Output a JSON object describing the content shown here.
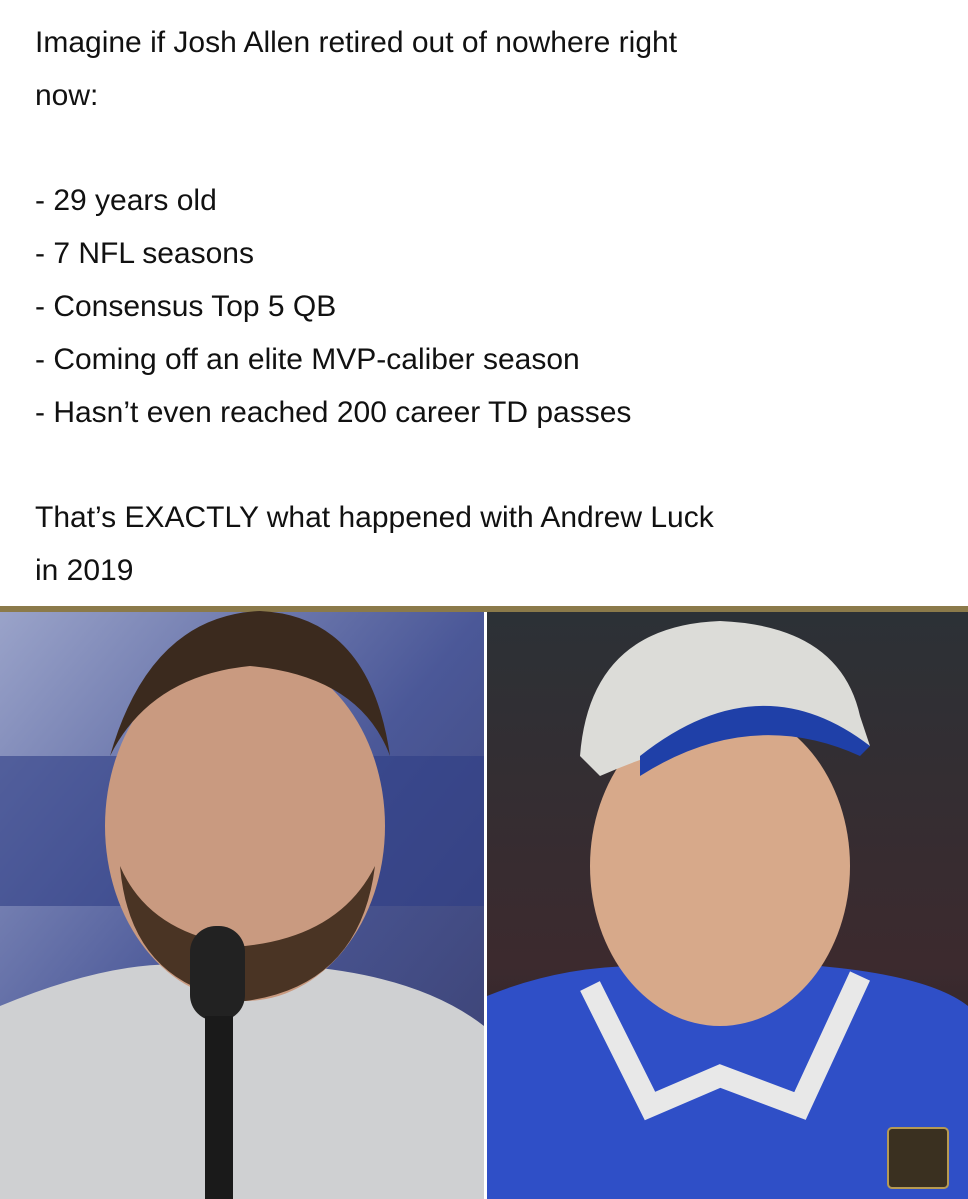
{
  "post": {
    "intro": [
      "Imagine if Josh Allen retired out of nowhere right",
      "now:"
    ],
    "bullets": [
      "- 29 years old",
      "- 7 NFL seasons",
      "- Consensus Top 5 QB",
      "- Coming off an elite MVP-caliber season",
      "- Hasn’t even reached 200 career TD passes"
    ],
    "closing": [
      "That’s EXACTLY what happened with Andrew Luck",
      "in 2019"
    ]
  }
}
